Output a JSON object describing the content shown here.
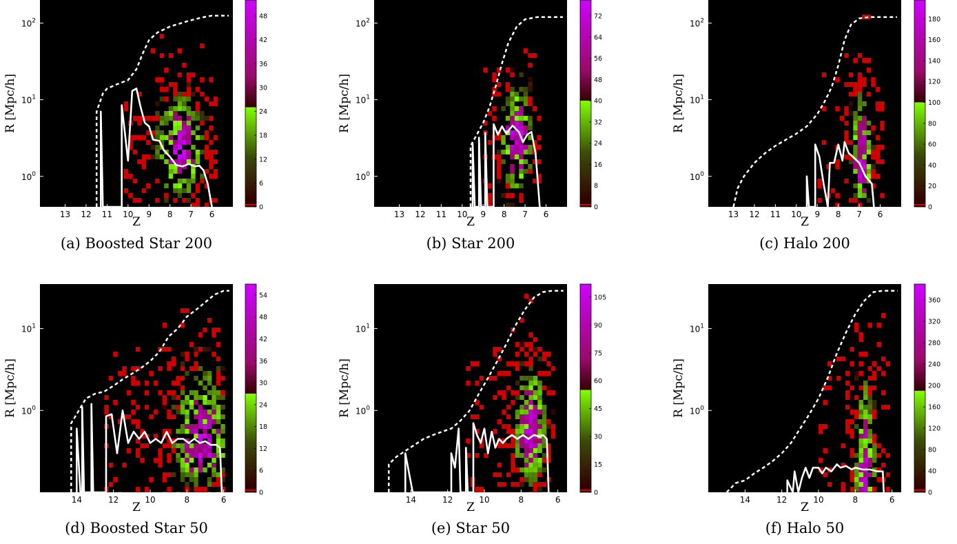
{
  "colorbar_colors": {
    "dark": "#330000",
    "red": "#d00000",
    "low_green": "#3a4a08",
    "green": "#80ff00",
    "purple_mid": "#9a0a6a",
    "purple": "#d000ff"
  },
  "chart_data": [
    {
      "id": "a",
      "type": "heatmap",
      "caption": "(a) Boosted Star 200",
      "xlabel": "Z",
      "ylabel": "R [Mpc/h]",
      "yscale": "log",
      "xlim": [
        14.2,
        5.0
      ],
      "ylim": [
        0.4,
        200
      ],
      "xticks": [
        13,
        12,
        11,
        10,
        9,
        8,
        7,
        6
      ],
      "yticks": [
        {
          "v": 1,
          "label": "10^0"
        },
        {
          "v": 10,
          "label": "10^1"
        },
        {
          "v": 100,
          "label": "10^2"
        }
      ],
      "cbar_ticks": [
        0,
        6,
        12,
        18,
        24,
        30,
        36,
        42,
        48
      ],
      "cbar_max": 52,
      "cbar_green_top": 25,
      "cloud": {
        "x0": 10.2,
        "x1": 5.9,
        "peak_z": 7.6,
        "width": 1.2,
        "peak_logr": 0.35,
        "top_logr": 1.3,
        "bottom_logr": -0.4,
        "density": "medium"
      },
      "dashed_envelope": [
        [
          11.5,
          0.4
        ],
        [
          11.5,
          7
        ],
        [
          11.2,
          12
        ],
        [
          11.0,
          14
        ],
        [
          10.5,
          16
        ],
        [
          10.0,
          18
        ],
        [
          9.6,
          25
        ],
        [
          9.3,
          40
        ],
        [
          9.0,
          60
        ],
        [
          8.6,
          75
        ],
        [
          8.0,
          90
        ],
        [
          7.2,
          105
        ],
        [
          6.5,
          118
        ],
        [
          6.0,
          125
        ],
        [
          5.2,
          125
        ]
      ],
      "median_line": [
        [
          11.3,
          0.4
        ],
        [
          11.3,
          7
        ],
        [
          11.2,
          0.4
        ],
        [
          10.3,
          0.4
        ],
        [
          10.3,
          8.5
        ],
        [
          10.0,
          1.6
        ],
        [
          9.8,
          13
        ],
        [
          9.6,
          14
        ],
        [
          9.4,
          8
        ],
        [
          9.2,
          5
        ],
        [
          9.0,
          4.5
        ],
        [
          8.8,
          3
        ],
        [
          8.5,
          2.9
        ],
        [
          8.3,
          2.2
        ],
        [
          8.0,
          1.8
        ],
        [
          7.7,
          1.4
        ],
        [
          7.4,
          1.35
        ],
        [
          7.1,
          1.45
        ],
        [
          6.8,
          1.35
        ],
        [
          6.6,
          1.38
        ],
        [
          6.4,
          1.2
        ],
        [
          6.2,
          0.8
        ],
        [
          6.0,
          0.4
        ]
      ]
    },
    {
      "id": "b",
      "type": "heatmap",
      "caption": "(b) Star 200",
      "xlabel": "Z",
      "ylabel": "R [Mpc/h]",
      "yscale": "log",
      "xlim": [
        14.2,
        5.0
      ],
      "ylim": [
        0.4,
        200
      ],
      "xticks": [
        13,
        12,
        11,
        10,
        9,
        8,
        7,
        6
      ],
      "yticks": [
        {
          "v": 1,
          "label": "10^0"
        },
        {
          "v": 10,
          "label": "10^1"
        },
        {
          "v": 100,
          "label": "10^2"
        }
      ],
      "cbar_ticks": [
        0,
        8,
        16,
        24,
        32,
        40,
        48,
        56,
        64,
        72
      ],
      "cbar_max": 78,
      "cbar_green_top": 40,
      "cloud": {
        "x0": 9.0,
        "x1": 6.3,
        "peak_z": 7.5,
        "width": 0.8,
        "peak_logr": 0.55,
        "top_logr": 1.4,
        "bottom_logr": -0.4,
        "density": "medium"
      },
      "dashed_envelope": [
        [
          9.6,
          0.4
        ],
        [
          9.6,
          2.5
        ],
        [
          9.3,
          3.5
        ],
        [
          9.0,
          5
        ],
        [
          8.7,
          8
        ],
        [
          8.4,
          15
        ],
        [
          8.1,
          30
        ],
        [
          7.8,
          55
        ],
        [
          7.4,
          90
        ],
        [
          7.0,
          112
        ],
        [
          6.4,
          120
        ],
        [
          5.2,
          120
        ]
      ],
      "median_line": [
        [
          9.5,
          0.4
        ],
        [
          9.5,
          2.7
        ],
        [
          9.4,
          0.4
        ],
        [
          9.2,
          0.4
        ],
        [
          9.2,
          3.2
        ],
        [
          9.1,
          0.4
        ],
        [
          8.9,
          0.4
        ],
        [
          8.9,
          3.7
        ],
        [
          8.8,
          0.4
        ],
        [
          8.5,
          0.4
        ],
        [
          8.5,
          4.8
        ],
        [
          8.3,
          3.5
        ],
        [
          8.1,
          4.5
        ],
        [
          7.9,
          3.6
        ],
        [
          7.6,
          4.6
        ],
        [
          7.3,
          3.8
        ],
        [
          7.1,
          2.8
        ],
        [
          6.9,
          3.5
        ],
        [
          6.7,
          3.8
        ],
        [
          6.5,
          2.0
        ],
        [
          6.3,
          0.4
        ]
      ]
    },
    {
      "id": "c",
      "type": "heatmap",
      "caption": "(c) Halo 200",
      "xlabel": "Z",
      "ylabel": "R [Mpc/h]",
      "yscale": "log",
      "xlim": [
        14.2,
        5.0
      ],
      "ylim": [
        0.4,
        200
      ],
      "xticks": [
        13,
        12,
        11,
        10,
        9,
        8,
        7,
        6
      ],
      "yticks": [
        {
          "v": 1,
          "label": "10^0"
        },
        {
          "v": 10,
          "label": "10^1"
        },
        {
          "v": 100,
          "label": "10^2"
        }
      ],
      "cbar_ticks": [
        0,
        20,
        40,
        60,
        80,
        100,
        120,
        140,
        160,
        180
      ],
      "cbar_max": 198,
      "cbar_green_top": 100,
      "cloud": {
        "x0": 9.0,
        "x1": 6.0,
        "peak_z": 7.0,
        "width": 0.5,
        "peak_logr": 0.1,
        "top_logr": 1.4,
        "bottom_logr": -0.4,
        "density": "high"
      },
      "dashed_envelope": [
        [
          13.0,
          0.4
        ],
        [
          12.8,
          0.7
        ],
        [
          12.5,
          1.0
        ],
        [
          12.0,
          1.5
        ],
        [
          11.5,
          2.0
        ],
        [
          11.0,
          2.5
        ],
        [
          10.5,
          3.0
        ],
        [
          10.0,
          3.6
        ],
        [
          9.5,
          4.5
        ],
        [
          9.0,
          6.5
        ],
        [
          8.6,
          10
        ],
        [
          8.3,
          15
        ],
        [
          8.0,
          28
        ],
        [
          7.7,
          60
        ],
        [
          7.4,
          95
        ],
        [
          7.0,
          115
        ],
        [
          6.5,
          120
        ],
        [
          5.2,
          120
        ]
      ],
      "median_line": [
        [
          9.5,
          0.4
        ],
        [
          9.5,
          1.0
        ],
        [
          9.4,
          0.4
        ],
        [
          9.1,
          0.4
        ],
        [
          9.1,
          2.6
        ],
        [
          8.9,
          1.8
        ],
        [
          8.7,
          0.8
        ],
        [
          8.5,
          0.4
        ],
        [
          8.4,
          1.5
        ],
        [
          8.2,
          1.5
        ],
        [
          8.0,
          2.6
        ],
        [
          7.8,
          1.6
        ],
        [
          7.7,
          2.8
        ],
        [
          7.5,
          2.0
        ],
        [
          7.3,
          1.8
        ],
        [
          7.0,
          1.5
        ],
        [
          6.7,
          1.0
        ],
        [
          6.4,
          0.8
        ],
        [
          6.3,
          0.4
        ]
      ]
    },
    {
      "id": "d",
      "type": "heatmap",
      "caption": "(d) Boosted Star 50",
      "xlabel": "Z",
      "ylabel": "R [Mpc/h]",
      "yscale": "log",
      "xlim": [
        16.0,
        5.5
      ],
      "ylim": [
        0.1,
        35
      ],
      "xticks": [
        14,
        12,
        10,
        8,
        6
      ],
      "yticks": [
        {
          "v": 1,
          "label": "10^0"
        },
        {
          "v": 10,
          "label": "10^1"
        }
      ],
      "cbar_ticks": [
        0,
        6,
        12,
        18,
        24,
        30,
        36,
        42,
        48,
        54
      ],
      "cbar_max": 57,
      "cbar_green_top": 27,
      "cloud": {
        "x0": 12.5,
        "x1": 6.0,
        "peak_z": 7.3,
        "width": 1.6,
        "peak_logr": -0.45,
        "top_logr": 0.8,
        "bottom_logr": -1.0,
        "density": "medium"
      },
      "dashed_envelope": [
        [
          14.3,
          0.1
        ],
        [
          14.3,
          0.7
        ],
        [
          14.0,
          0.9
        ],
        [
          13.5,
          1.4
        ],
        [
          13.0,
          1.6
        ],
        [
          12.5,
          1.7
        ],
        [
          12.0,
          2.0
        ],
        [
          11.5,
          2.4
        ],
        [
          11.0,
          2.8
        ],
        [
          10.5,
          3.3
        ],
        [
          10.0,
          4.0
        ],
        [
          9.5,
          5.2
        ],
        [
          9.0,
          8
        ],
        [
          8.5,
          10
        ],
        [
          8.0,
          14
        ],
        [
          7.5,
          17
        ],
        [
          7.0,
          21
        ],
        [
          6.5,
          26
        ],
        [
          6.0,
          29
        ],
        [
          5.7,
          29
        ]
      ],
      "median_line": [
        [
          14.0,
          0.1
        ],
        [
          14.0,
          0.6
        ],
        [
          13.8,
          0.1
        ],
        [
          13.7,
          0.1
        ],
        [
          13.7,
          1.1
        ],
        [
          13.6,
          0.1
        ],
        [
          13.2,
          0.1
        ],
        [
          13.2,
          1.2
        ],
        [
          13.1,
          0.1
        ],
        [
          12.4,
          0.1
        ],
        [
          12.4,
          0.85
        ],
        [
          12.1,
          0.9
        ],
        [
          11.8,
          0.3
        ],
        [
          11.5,
          1.0
        ],
        [
          11.2,
          0.4
        ],
        [
          10.9,
          0.55
        ],
        [
          10.6,
          0.45
        ],
        [
          10.3,
          0.55
        ],
        [
          10.0,
          0.4
        ],
        [
          9.7,
          0.45
        ],
        [
          9.4,
          0.4
        ],
        [
          9.1,
          0.55
        ],
        [
          8.8,
          0.4
        ],
        [
          8.5,
          0.45
        ],
        [
          8.2,
          0.45
        ],
        [
          7.9,
          0.4
        ],
        [
          7.6,
          0.45
        ],
        [
          7.3,
          0.4
        ],
        [
          7.0,
          0.42
        ],
        [
          6.7,
          0.38
        ],
        [
          6.4,
          0.38
        ],
        [
          6.2,
          0.35
        ],
        [
          6.1,
          0.1
        ]
      ]
    },
    {
      "id": "e",
      "type": "heatmap",
      "caption": "(e) Star 50",
      "xlabel": "Z",
      "ylabel": "R [Mpc/h]",
      "yscale": "log",
      "xlim": [
        16.0,
        5.5
      ],
      "ylim": [
        0.1,
        35
      ],
      "xticks": [
        14,
        12,
        10,
        8,
        6
      ],
      "yticks": [
        {
          "v": 1,
          "label": "10^0"
        },
        {
          "v": 10,
          "label": "10^1"
        }
      ],
      "cbar_ticks": [
        0,
        15,
        30,
        45,
        60,
        75,
        90,
        105
      ],
      "cbar_max": 112,
      "cbar_green_top": 55,
      "cloud": {
        "x0": 11.0,
        "x1": 6.3,
        "peak_z": 7.6,
        "width": 0.9,
        "peak_logr": -0.3,
        "top_logr": 0.8,
        "bottom_logr": -1.0,
        "density": "high"
      },
      "dashed_envelope": [
        [
          15.2,
          0.1
        ],
        [
          15.2,
          0.22
        ],
        [
          14.8,
          0.27
        ],
        [
          14.3,
          0.32
        ],
        [
          13.8,
          0.38
        ],
        [
          13.3,
          0.45
        ],
        [
          12.8,
          0.5
        ],
        [
          12.3,
          0.55
        ],
        [
          11.8,
          0.6
        ],
        [
          11.3,
          0.75
        ],
        [
          10.8,
          1.0
        ],
        [
          10.3,
          1.6
        ],
        [
          9.8,
          2.5
        ],
        [
          9.3,
          4.0
        ],
        [
          8.8,
          6.5
        ],
        [
          8.3,
          11
        ],
        [
          7.8,
          17
        ],
        [
          7.3,
          24
        ],
        [
          6.8,
          28
        ],
        [
          6.3,
          29
        ],
        [
          5.7,
          29
        ]
      ],
      "median_line": [
        [
          14.3,
          0.1
        ],
        [
          14.3,
          0.3
        ],
        [
          13.9,
          0.1
        ],
        [
          11.8,
          0.1
        ],
        [
          11.8,
          0.3
        ],
        [
          11.6,
          0.2
        ],
        [
          11.4,
          0.6
        ],
        [
          11.3,
          0.1
        ],
        [
          11.0,
          0.1
        ],
        [
          11.0,
          0.35
        ],
        [
          10.9,
          0.1
        ],
        [
          10.6,
          0.1
        ],
        [
          10.6,
          0.7
        ],
        [
          10.4,
          0.5
        ],
        [
          10.2,
          0.4
        ],
        [
          10.0,
          0.6
        ],
        [
          9.8,
          0.3
        ],
        [
          9.6,
          0.55
        ],
        [
          9.4,
          0.35
        ],
        [
          9.2,
          0.45
        ],
        [
          9.0,
          0.4
        ],
        [
          8.8,
          0.45
        ],
        [
          8.5,
          0.5
        ],
        [
          8.2,
          0.45
        ],
        [
          7.9,
          0.5
        ],
        [
          7.6,
          0.45
        ],
        [
          7.3,
          0.5
        ],
        [
          7.0,
          0.48
        ],
        [
          6.8,
          0.5
        ],
        [
          6.6,
          0.45
        ],
        [
          6.5,
          0.1
        ]
      ]
    },
    {
      "id": "f",
      "type": "heatmap",
      "caption": "(f) Halo 50",
      "xlabel": "Z",
      "ylabel": "R [Mpc/h]",
      "yscale": "log",
      "xlim": [
        16.0,
        5.5
      ],
      "ylim": [
        0.1,
        35
      ],
      "xticks": [
        14,
        12,
        10,
        8,
        6
      ],
      "yticks": [
        {
          "v": 1,
          "label": "10^0"
        },
        {
          "v": 10,
          "label": "10^1"
        }
      ],
      "cbar_ticks": [
        0,
        40,
        80,
        120,
        160,
        200,
        240,
        280,
        320,
        360
      ],
      "cbar_max": 390,
      "cbar_green_top": 190,
      "cloud": {
        "x0": 10.0,
        "x1": 6.2,
        "peak_z": 7.6,
        "width": 0.6,
        "peak_logr": -0.9,
        "top_logr": 0.7,
        "bottom_logr": -1.0,
        "density": "high"
      },
      "dashed_envelope": [
        [
          15.0,
          0.1
        ],
        [
          14.5,
          0.13
        ],
        [
          14.0,
          0.14
        ],
        [
          13.5,
          0.17
        ],
        [
          13.0,
          0.2
        ],
        [
          12.5,
          0.24
        ],
        [
          12.0,
          0.3
        ],
        [
          11.5,
          0.4
        ],
        [
          11.0,
          0.6
        ],
        [
          10.5,
          0.9
        ],
        [
          10.0,
          1.4
        ],
        [
          9.5,
          2.5
        ],
        [
          9.0,
          5
        ],
        [
          8.5,
          9
        ],
        [
          8.0,
          15
        ],
        [
          7.5,
          22
        ],
        [
          7.0,
          28
        ],
        [
          6.5,
          29
        ],
        [
          5.7,
          29
        ]
      ],
      "median_line": [
        [
          11.7,
          0.1
        ],
        [
          11.7,
          0.14
        ],
        [
          11.4,
          0.1
        ],
        [
          11.3,
          0.18
        ],
        [
          11.1,
          0.1
        ],
        [
          10.9,
          0.15
        ],
        [
          10.7,
          0.2
        ],
        [
          10.5,
          0.15
        ],
        [
          10.3,
          0.2
        ],
        [
          10.0,
          0.2
        ],
        [
          9.8,
          0.17
        ],
        [
          9.6,
          0.2
        ],
        [
          9.3,
          0.18
        ],
        [
          9.0,
          0.22
        ],
        [
          8.8,
          0.2
        ],
        [
          8.5,
          0.21
        ],
        [
          8.2,
          0.19
        ],
        [
          8.0,
          0.2
        ],
        [
          7.6,
          0.19
        ],
        [
          7.2,
          0.19
        ],
        [
          6.8,
          0.18
        ],
        [
          6.5,
          0.18
        ],
        [
          6.45,
          0.1
        ]
      ]
    }
  ]
}
